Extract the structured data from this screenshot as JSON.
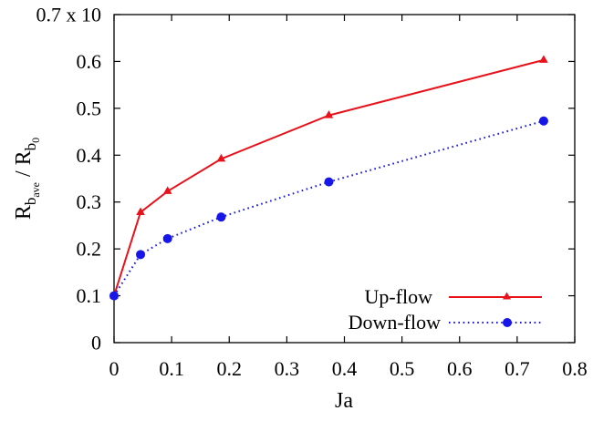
{
  "chart_data": {
    "type": "line",
    "xlabel": "Ja",
    "ylabel": {
      "main": "R",
      "sub_main": "b",
      "sub_sub": "ave",
      "sep": " / ",
      "den": "R",
      "sub_den": "b",
      "sub_den_sub": "0"
    },
    "xlim": [
      0,
      0.8
    ],
    "ylim": [
      0,
      0.7
    ],
    "xticks": [
      "0",
      "0.1",
      "0.2",
      "0.3",
      "0.4",
      "0.5",
      "0.6",
      "0.7",
      "0.8"
    ],
    "yticks": [
      "0",
      "0.1",
      "0.2",
      "0.3",
      "0.4",
      "0.5",
      "0.6",
      "0.7 x 10"
    ],
    "x": [
      0,
      0.046,
      0.093,
      0.186,
      0.373,
      0.746
    ],
    "series": [
      {
        "name": "Up-flow",
        "color": "#e8121b",
        "marker": "triangle",
        "line": "solid",
        "values": [
          0.1,
          0.278,
          0.323,
          0.392,
          0.485,
          0.603
        ]
      },
      {
        "name": "Down-flow",
        "color": "#1616e8",
        "marker": "circle",
        "line": "dotted",
        "values": [
          0.1,
          0.188,
          0.222,
          0.268,
          0.343,
          0.473
        ]
      }
    ],
    "legend": "bottom-right",
    "grid": false
  }
}
